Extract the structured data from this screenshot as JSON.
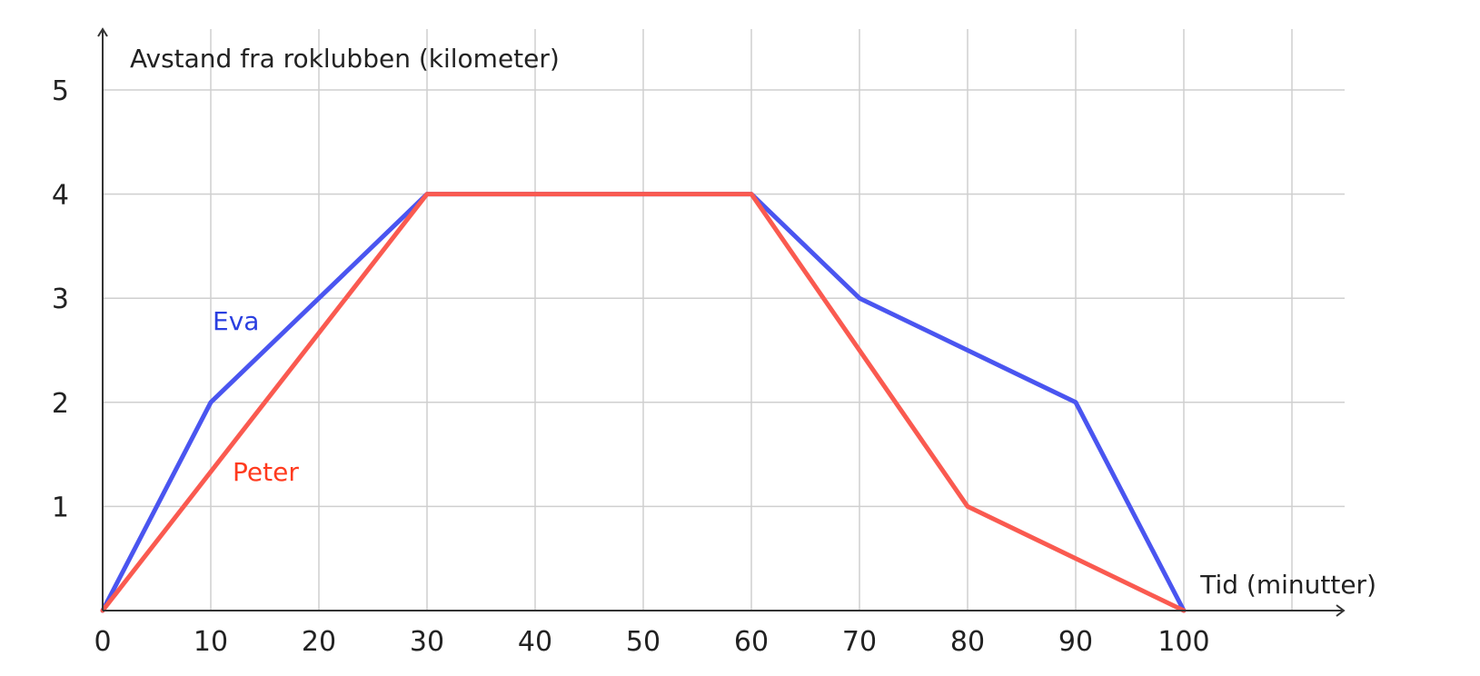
{
  "chart_data": {
    "type": "line",
    "title": "",
    "xlabel": "Tid (minutter)",
    "ylabel": "Avstand fra roklubben (kilometer)",
    "xlim": [
      0,
      115
    ],
    "ylim": [
      0,
      5.5
    ],
    "x_ticks": [
      0,
      10,
      20,
      30,
      40,
      50,
      60,
      70,
      80,
      90,
      100
    ],
    "x_tick_labels": [
      "0",
      "10",
      "20",
      "30",
      "40",
      "50",
      "60",
      "70",
      "80",
      "90",
      "100"
    ],
    "y_ticks": [
      1,
      2,
      3,
      4,
      5
    ],
    "y_tick_labels": [
      "1",
      "2",
      "3",
      "4",
      "5"
    ],
    "grid": true,
    "legend": "none",
    "series": [
      {
        "name": "Eva",
        "color": "#4a55f0",
        "label_color": "#2a3fe0",
        "points": [
          {
            "x": 0,
            "y": 0
          },
          {
            "x": 10,
            "y": 2
          },
          {
            "x": 30,
            "y": 4
          },
          {
            "x": 60,
            "y": 4
          },
          {
            "x": 70,
            "y": 3
          },
          {
            "x": 90,
            "y": 2
          },
          {
            "x": 100,
            "y": 0
          }
        ]
      },
      {
        "name": "Peter",
        "color": "#fa5a50",
        "label_color": "#ff3a1e",
        "points": [
          {
            "x": 0,
            "y": 0
          },
          {
            "x": 30,
            "y": 4
          },
          {
            "x": 60,
            "y": 4
          },
          {
            "x": 80,
            "y": 1
          },
          {
            "x": 100,
            "y": 0
          }
        ]
      }
    ]
  }
}
